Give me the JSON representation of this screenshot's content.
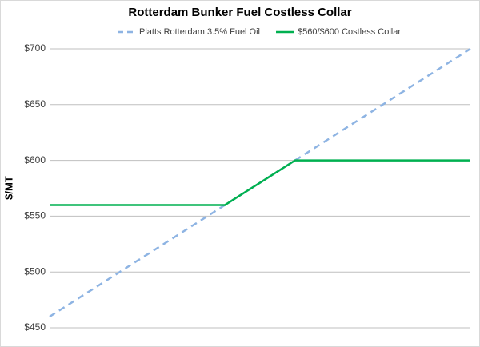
{
  "chart_data": {
    "type": "line",
    "title": "Rotterdam Bunker Fuel Costless Collar",
    "ylabel": "$/MT",
    "categories": [
      null,
      null,
      null,
      null,
      null,
      null,
      null,
      null,
      null,
      null,
      null,
      null,
      null,
      null,
      null,
      null,
      null,
      null,
      null,
      null,
      null,
      null,
      null,
      null,
      null
    ],
    "series": [
      {
        "name": "Platts Rotterdam 3.5% Fuel Oil",
        "color": "#8eb4e3",
        "dashed": true,
        "values": [
          460,
          470,
          480,
          490,
          500,
          510,
          520,
          530,
          540,
          550,
          560,
          570,
          580,
          590,
          600,
          610,
          620,
          630,
          640,
          650,
          660,
          670,
          680,
          690,
          700
        ]
      },
      {
        "name": "$560/$600 Costless Collar",
        "color": "#00b050",
        "dashed": false,
        "values": [
          560,
          560,
          560,
          560,
          560,
          560,
          560,
          560,
          560,
          560,
          560,
          570,
          580,
          590,
          600,
          600,
          600,
          600,
          600,
          600,
          600,
          600,
          600,
          600,
          600
        ]
      }
    ],
    "ylim": [
      450,
      700
    ],
    "yticks": [
      {
        "value": 450,
        "label": "$450"
      },
      {
        "value": 500,
        "label": "$500"
      },
      {
        "value": 550,
        "label": "$550"
      },
      {
        "value": 600,
        "label": "$600"
      },
      {
        "value": 650,
        "label": "$650"
      },
      {
        "value": 700,
        "label": "$700"
      }
    ],
    "grid": true,
    "legend": "top"
  }
}
